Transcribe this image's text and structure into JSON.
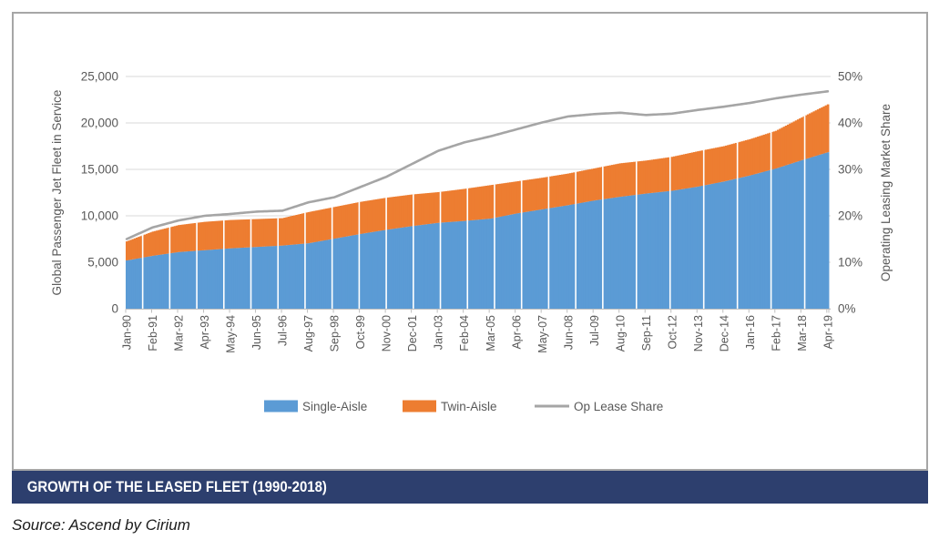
{
  "panel": {
    "banner_title": "GROWTH OF THE LEASED FLEET (1990-2018)",
    "banner_color": "#2d3f6e",
    "source": "Source: Ascend by Cirium"
  },
  "chart_data": {
    "type": "bar",
    "subtype": "stacked-monthly-bars-with-line",
    "title": "",
    "left_axis": {
      "label": "Global Passenger Jet Fleet in Service",
      "min": 0,
      "max": 25000,
      "step": 5000,
      "tick_labels": [
        "25,000",
        "20,000",
        "15,000",
        "10,000",
        "5,000",
        "0"
      ]
    },
    "right_axis": {
      "label": "Operating Leasing Market Share",
      "min_pct": 0,
      "max_pct": 50,
      "step_pct": 10,
      "tick_labels": [
        "50%",
        "40%",
        "30%",
        "20%",
        "10%",
        "0%"
      ]
    },
    "categories": [
      "Jan-90",
      "Feb-91",
      "Mar-92",
      "Apr-93",
      "May-94",
      "Jun-95",
      "Jul-96",
      "Aug-97",
      "Sep-98",
      "Oct-99",
      "Nov-00",
      "Dec-01",
      "Jan-03",
      "Feb-04",
      "Mar-05",
      "Apr-06",
      "May-07",
      "Jun-08",
      "Jul-09",
      "Aug-10",
      "Sep-11",
      "Oct-12",
      "Nov-13",
      "Dec-14",
      "Jan-16",
      "Feb-17",
      "Mar-18",
      "Apr-19"
    ],
    "months_per_category": 13,
    "grid": true,
    "legend_position": "bottom",
    "series": [
      {
        "name": "Single-Aisle",
        "type": "bar",
        "axis": "left",
        "color": "#5b9bd5",
        "values": [
          5200,
          5700,
          6100,
          6300,
          6500,
          6650,
          6800,
          7050,
          7550,
          8050,
          8500,
          8900,
          9250,
          9450,
          9700,
          10250,
          10700,
          11150,
          11650,
          12050,
          12400,
          12700,
          13150,
          13700,
          14350,
          15100,
          16000,
          16850
        ]
      },
      {
        "name": "Twin-Aisle",
        "type": "bar",
        "axis": "left",
        "color": "#ed7d31",
        "values": [
          2050,
          2600,
          2900,
          3050,
          3050,
          3000,
          2950,
          3350,
          3400,
          3450,
          3450,
          3400,
          3300,
          3450,
          3600,
          3450,
          3400,
          3400,
          3450,
          3600,
          3550,
          3650,
          3800,
          3800,
          3900,
          4050,
          4600,
          5150
        ]
      },
      {
        "name": "Op Lease Share",
        "type": "line",
        "axis": "right",
        "color": "#a5a5a5",
        "values_pct": [
          15.0,
          17.5,
          19.0,
          20.0,
          20.4,
          20.9,
          21.1,
          22.9,
          24.0,
          26.2,
          28.4,
          31.2,
          34.0,
          35.8,
          37.1,
          38.6,
          40.1,
          41.4,
          41.9,
          42.2,
          41.7,
          42.0,
          42.8,
          43.5,
          44.3,
          45.3,
          46.1,
          46.8
        ]
      }
    ],
    "style": {
      "gridline_color": "#d9d9d9",
      "axis_line_color": "#bfbfbf",
      "axis_text_color": "#595959",
      "separator_color": "#ffffff"
    }
  }
}
